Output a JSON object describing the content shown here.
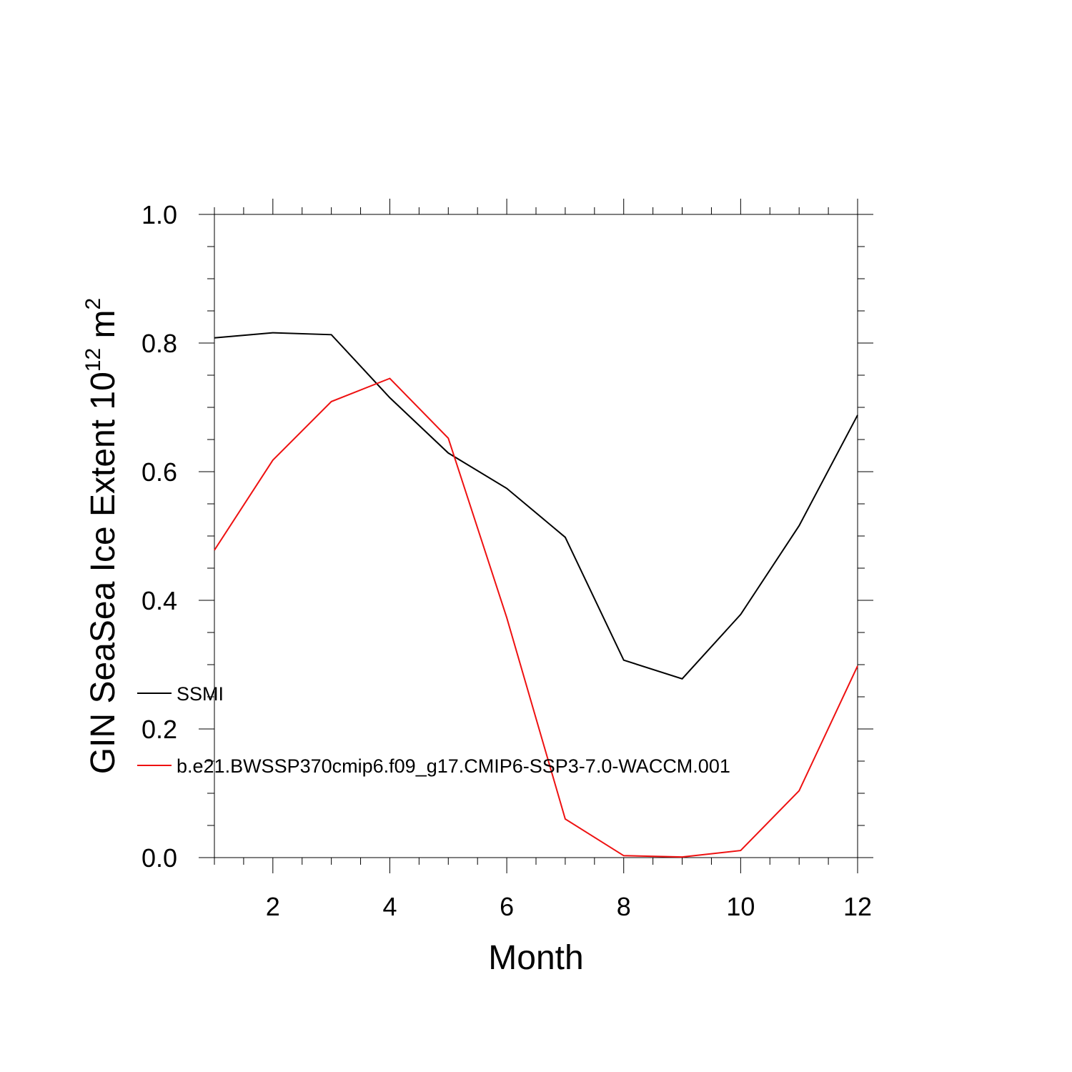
{
  "chart_data": {
    "type": "line",
    "xlabel": "Month",
    "ylabel": {
      "text": "GIN SeaSea Ice Extent 10",
      "exponent": "12",
      "unit": "m",
      "unit_exponent": "2"
    },
    "xlim": [
      1,
      12
    ],
    "ylim": [
      0.0,
      1.0
    ],
    "x_ticks": [
      2,
      4,
      6,
      8,
      10,
      12
    ],
    "x_tick_labels": [
      "2",
      "4",
      "6",
      "8",
      "10",
      "12"
    ],
    "y_ticks": [
      0.0,
      0.2,
      0.4,
      0.6,
      0.8,
      1.0
    ],
    "y_tick_labels": [
      "0.0",
      "0.2",
      "0.4",
      "0.6",
      "0.8",
      "1.0"
    ],
    "x": [
      1,
      2,
      3,
      4,
      5,
      6,
      7,
      8,
      9,
      10,
      11,
      12
    ],
    "series": [
      {
        "name": "SSMI",
        "color": "#000000",
        "values": [
          0.808,
          0.816,
          0.813,
          0.715,
          0.629,
          0.574,
          0.498,
          0.307,
          0.278,
          0.378,
          0.516,
          0.688
        ]
      },
      {
        "name": "b.e21.BWSSP370cmip6.f09_g17.CMIP6-SSP3-7.0-WACCM.001",
        "color": "#ee1111",
        "values": [
          0.478,
          0.618,
          0.709,
          0.745,
          0.652,
          0.373,
          0.06,
          0.003,
          0.001,
          0.011,
          0.104,
          0.298
        ]
      }
    ],
    "legend_placement": "lower-left inside",
    "grid": false
  }
}
